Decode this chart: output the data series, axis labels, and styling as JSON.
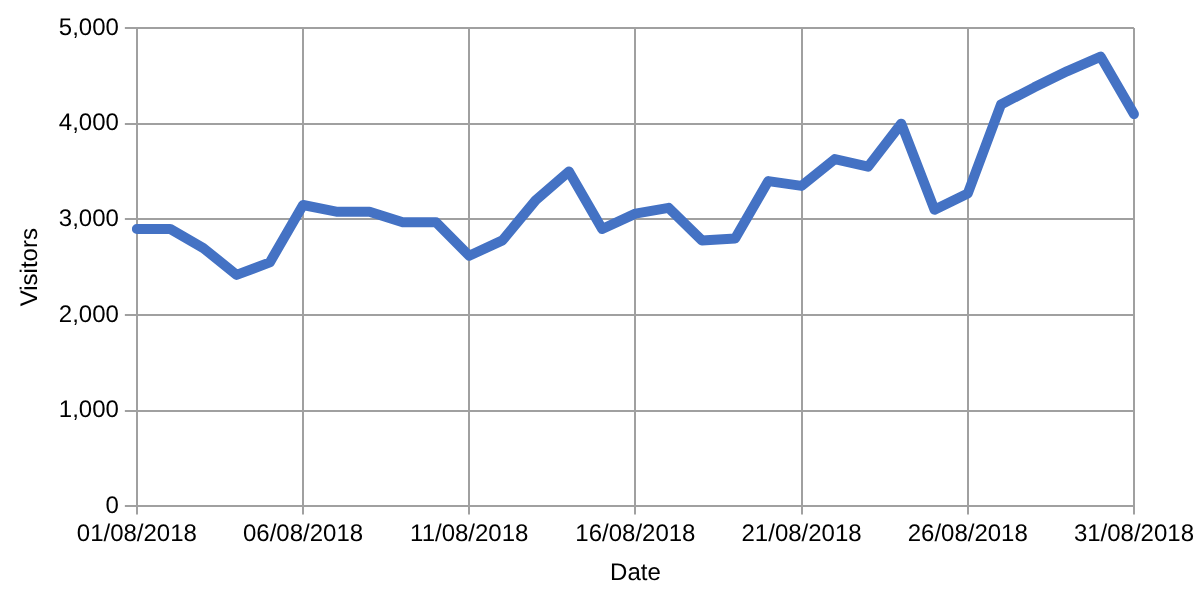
{
  "chart_data": {
    "type": "line",
    "xlabel": "Date",
    "ylabel": "Visitors",
    "categories": [
      "01/08/2018",
      null,
      null,
      null,
      null,
      "06/08/2018",
      null,
      null,
      null,
      null,
      "11/08/2018",
      null,
      null,
      null,
      null,
      "16/08/2018",
      null,
      null,
      null,
      null,
      "21/08/2018",
      null,
      null,
      null,
      null,
      "26/08/2018",
      null,
      null,
      null,
      null,
      "31/08/2018"
    ],
    "series": [
      {
        "color": "#4472c4",
        "values": [
          2900,
          2900,
          2700,
          2420,
          2550,
          3150,
          3080,
          3080,
          2970,
          2970,
          2620,
          2780,
          3200,
          3500,
          2900,
          3060,
          3120,
          2780,
          2800,
          3400,
          3350,
          3630,
          3550,
          4000,
          3100,
          3270,
          4200,
          4380,
          4550,
          4700,
          4100
        ]
      }
    ],
    "ylim": [
      0,
      5000
    ],
    "yticks": [
      {
        "value": 0,
        "label": "0"
      },
      {
        "value": 1000,
        "label": "1,000"
      },
      {
        "value": 2000,
        "label": "2,000"
      },
      {
        "value": 3000,
        "label": "3,000"
      },
      {
        "value": 4000,
        "label": "4,000"
      },
      {
        "value": 5000,
        "label": "5,000"
      }
    ],
    "grid": true,
    "legend": false,
    "marker": "none",
    "line_style": "solid"
  }
}
